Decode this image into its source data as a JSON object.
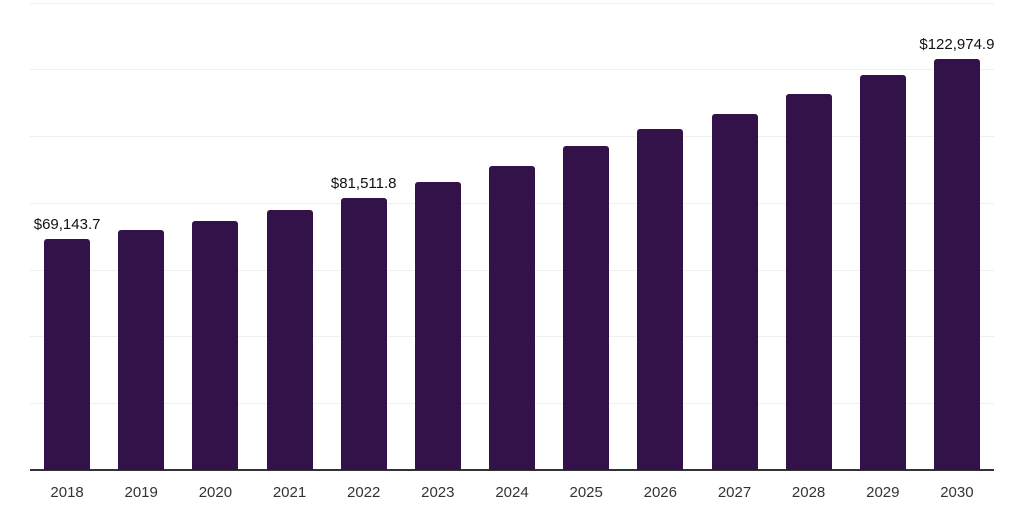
{
  "chart_data": {
    "type": "bar",
    "title": "",
    "xlabel": "",
    "ylabel": "",
    "categories": [
      "2018",
      "2019",
      "2020",
      "2021",
      "2022",
      "2023",
      "2024",
      "2025",
      "2026",
      "2027",
      "2028",
      "2029",
      "2030"
    ],
    "values": [
      69143.7,
      71900,
      74600,
      77900,
      81511.8,
      86200,
      91200,
      96900,
      102200,
      106600,
      112600,
      118200,
      122974.9
    ],
    "data_labels": [
      "$69,143.7",
      null,
      null,
      null,
      "$81,511.8",
      null,
      null,
      null,
      null,
      null,
      null,
      null,
      "$122,974.9"
    ],
    "ylim": [
      0,
      140000
    ],
    "gridline_step": 20000,
    "grid": true,
    "legend": false,
    "y_tick_labels_visible": false,
    "colors": {
      "bar": "#331249",
      "gridline": "#efefef",
      "axis_line": "#333333",
      "tick_label": "#333333",
      "data_label": "#111111",
      "background": "#ffffff"
    }
  }
}
